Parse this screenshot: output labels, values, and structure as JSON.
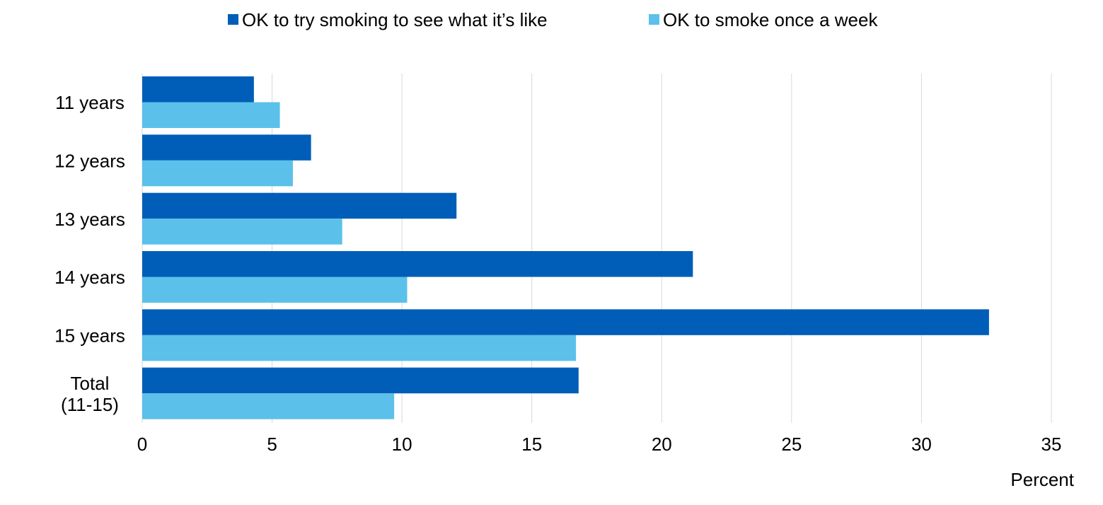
{
  "chart_data": {
    "type": "bar",
    "orientation": "horizontal",
    "categories": [
      "11 years",
      "12 years",
      "13 years",
      "14 years",
      "15 years",
      "Total (11-15)"
    ],
    "category_label_lines": [
      [
        "11 years"
      ],
      [
        "12 years"
      ],
      [
        "13 years"
      ],
      [
        "14 years"
      ],
      [
        "15 years"
      ],
      [
        "Total",
        "(11-15)"
      ]
    ],
    "series": [
      {
        "name": "OK to try smoking to see what it’s like",
        "color": "#005EB8",
        "values": [
          4.3,
          6.5,
          12.1,
          21.2,
          32.6,
          16.8
        ]
      },
      {
        "name": "OK to smoke once a week",
        "color": "#5BC1EA",
        "values": [
          5.3,
          5.8,
          7.7,
          10.2,
          16.7,
          9.7
        ]
      }
    ],
    "xlim": [
      0,
      35
    ],
    "xticks": [
      0,
      5,
      10,
      15,
      20,
      25,
      30,
      35
    ],
    "xlabel": "Percent",
    "ylabel": "",
    "title": "",
    "grid": "vertical",
    "gridline_color": "#D9D9D9",
    "legend_position": "top"
  }
}
